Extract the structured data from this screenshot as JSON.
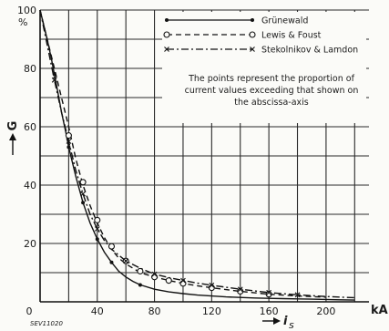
{
  "chart_data": {
    "type": "line",
    "title": "",
    "xlabel": "i",
    "xlabel_sub": "s",
    "xunit": "kA",
    "ylabel": "G",
    "yunit": "%",
    "xlim": [
      0,
      230
    ],
    "ylim": [
      0,
      100
    ],
    "x_ticks": [
      0,
      40,
      80,
      120,
      160,
      200
    ],
    "y_ticks": [
      20,
      40,
      60,
      80,
      100
    ],
    "x_tick_labels": [
      "0",
      "40",
      "80",
      "120",
      "160",
      "200"
    ],
    "y_tick_labels": [
      "20",
      "40",
      "60",
      "80",
      "100"
    ],
    "x_gridlines": [
      20,
      40,
      60,
      80,
      100,
      120,
      140,
      160,
      180,
      200,
      220
    ],
    "y_gridlines": [
      10,
      20,
      30,
      40,
      50,
      60,
      70,
      80,
      90,
      100
    ],
    "grid": true,
    "legend_position": "top-right",
    "annotation": [
      "The points represent the proportion of",
      "current values exceeding that shown on",
      "the abscissa-axis"
    ],
    "stamp": "SEV11020",
    "series": [
      {
        "name": "Grünewald",
        "style": "solid",
        "marker": "dot",
        "curve_x": [
          0,
          2,
          5,
          8,
          10,
          12,
          15,
          18,
          20,
          25,
          30,
          35,
          40,
          45,
          50,
          55,
          60,
          65,
          70,
          80,
          90,
          100,
          110,
          120,
          130,
          140,
          150,
          160,
          170,
          180,
          190,
          200,
          210,
          220
        ],
        "curve_y": [
          100,
          96,
          90,
          83,
          78,
          73,
          65,
          58,
          53,
          43,
          34,
          27,
          21.5,
          17,
          13.5,
          10.5,
          8.5,
          7,
          5.8,
          4.3,
          3.4,
          2.8,
          2.3,
          2,
          1.7,
          1.5,
          1.3,
          1.2,
          1.1,
          1.0,
          0.9,
          0.8,
          0.7,
          0.6
        ],
        "points_x": [
          10,
          20,
          30,
          40,
          50,
          70
        ],
        "points_y": [
          78,
          53,
          34,
          21.5,
          13.5,
          5.8
        ]
      },
      {
        "name": "Lewis & Foust",
        "style": "dashed",
        "marker": "circle",
        "curve_x": [
          0,
          5,
          10,
          15,
          20,
          25,
          30,
          35,
          40,
          45,
          50,
          55,
          60,
          70,
          80,
          90,
          100,
          110,
          120,
          140,
          160,
          180,
          200
        ],
        "curve_y": [
          100,
          90,
          80,
          70,
          60,
          49,
          40,
          33,
          27,
          22,
          18,
          15,
          13,
          10,
          8.5,
          7.3,
          6.3,
          5.5,
          4.8,
          3.6,
          2.6,
          2,
          1.6
        ],
        "points_x": [
          20,
          30,
          40,
          50,
          60,
          70,
          80,
          90,
          100,
          120,
          140,
          160
        ],
        "points_y": [
          57,
          41,
          28,
          19,
          14,
          10.5,
          8.5,
          7.3,
          6.3,
          4.8,
          3.6,
          2.6
        ]
      },
      {
        "name": "Stekolnikov & Lamdon",
        "style": "dashdot",
        "marker": "cross",
        "curve_x": [
          0,
          5,
          10,
          15,
          20,
          25,
          30,
          35,
          40,
          45,
          50,
          60,
          70,
          80,
          90,
          100,
          110,
          120,
          130,
          140,
          160,
          180,
          200,
          220
        ],
        "curve_y": [
          100,
          88,
          76,
          65,
          55,
          45,
          37,
          30,
          25,
          21,
          18,
          14,
          11.5,
          9.5,
          8.3,
          7.3,
          6.4,
          5.7,
          5,
          4.3,
          3.2,
          2.4,
          1.8,
          1.4
        ],
        "points_x": [
          10,
          20,
          30,
          40,
          60,
          80,
          100,
          120,
          140,
          160,
          180
        ],
        "points_y": [
          76,
          55,
          37,
          25,
          14,
          9.5,
          7.3,
          5.7,
          4.3,
          3.2,
          2.4
        ]
      }
    ]
  }
}
